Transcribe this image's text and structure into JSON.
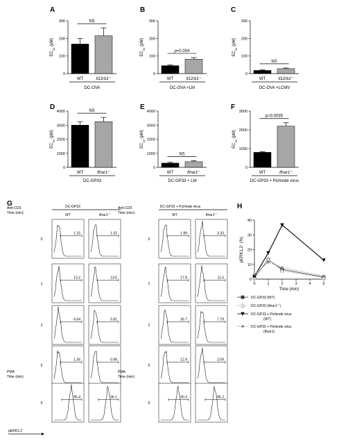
{
  "bar_panels": [
    {
      "letter": "A",
      "ymax": 300,
      "ticks": [
        "0",
        "100",
        "200",
        "300"
      ],
      "ylabel": "EC50 (pM)",
      "categories": [
        "WT",
        "Il12rb1-/-"
      ],
      "values": [
        168,
        215
      ],
      "errors": [
        32,
        45
      ],
      "annotation": "NS",
      "annotation_type": "ns",
      "condition": "DC-OVA"
    },
    {
      "letter": "B",
      "ymax": 300,
      "ticks": [
        "0",
        "100",
        "200",
        "300"
      ],
      "ylabel": "EC50 (pM)",
      "categories": [
        "WT",
        "Il12rb1-/-"
      ],
      "values": [
        45,
        82
      ],
      "errors": [
        4,
        9
      ],
      "annotation": "p=0.004",
      "annotation_type": "p",
      "condition": "DC-OVA +LM"
    },
    {
      "letter": "C",
      "ymax": 300,
      "ticks": [
        "0",
        "100",
        "200",
        "300"
      ],
      "ylabel": "EC50 (pM)",
      "categories": [
        "WT",
        "Il12rb1-/-"
      ],
      "values": [
        18,
        28
      ],
      "errors": [
        3,
        4
      ],
      "annotation": "NS",
      "annotation_type": "ns",
      "condition": "DC-OVA +LCMV"
    },
    {
      "letter": "D",
      "ymax": 4000,
      "ticks": [
        "0",
        "1000",
        "2000",
        "3000",
        "4000"
      ],
      "ylabel": "EC50 (pM)",
      "categories": [
        "WT",
        "Ifnar1-/-"
      ],
      "values": [
        3000,
        3250
      ],
      "errors": [
        250,
        300
      ],
      "annotation": "NS",
      "annotation_type": "ns",
      "condition": "DC-GP33"
    },
    {
      "letter": "E",
      "ymax": 4000,
      "ticks": [
        "0",
        "1000",
        "2000",
        "3000",
        "4000"
      ],
      "ylabel": "EC50 (pM)",
      "categories": [
        "WT",
        "Ifnar1-/-"
      ],
      "values": [
        300,
        400
      ],
      "errors": [
        60,
        70
      ],
      "annotation": "NS",
      "annotation_type": "ns",
      "condition": "DC-GP33 + LM"
    },
    {
      "letter": "F",
      "ymax": 3000,
      "ticks": [
        "0",
        "1000",
        "2000",
        "3000"
      ],
      "ylabel": "EC50 (pM)",
      "categories": [
        "WT",
        "Ifnar1-/-"
      ],
      "values": [
        800,
        2200
      ],
      "errors": [
        40,
        180
      ],
      "annotation": "p=0.0035",
      "annotation_type": "p",
      "condition": "DC-GP33 + Pichinde virus"
    }
  ],
  "panel_g": {
    "letter": "G",
    "anti_cd3": "Anti-CD3",
    "time_label": "Time (min):",
    "pma": "PMA",
    "xlabel": "pERK1,2",
    "times": [
      "0",
      "1",
      "2",
      "5"
    ],
    "pma_time": "5",
    "groups": [
      {
        "title": "DC-GP33",
        "columns": [
          "WT",
          "Ifnar1-/-"
        ],
        "values": [
          [
            "1.15",
            "1.02"
          ],
          [
            "13.2",
            "13.6"
          ],
          [
            "6.64",
            "5.81"
          ],
          [
            "1.36",
            "0.98"
          ]
        ],
        "pma_values": [
          "95.4",
          "96.1"
        ]
      },
      {
        "title": "DC-GP33 + Pichinde virus",
        "columns": [
          "WT",
          "Ifnar1-/-"
        ],
        "values": [
          [
            "1.89",
            "3.33"
          ],
          [
            "17.8",
            "11.5"
          ],
          [
            "36.7",
            "7.79"
          ],
          [
            "12.9",
            "2.09"
          ]
        ],
        "pma_values": [
          "90.3",
          "95.2"
        ]
      }
    ]
  },
  "panel_h": {
    "letter": "H",
    "ylabel": "pERK1,2+ (%)",
    "xlabel": "Time (min)",
    "yticks": [
      "0",
      "10",
      "20",
      "30",
      "40"
    ],
    "xticks": [
      "0",
      "1",
      "2",
      "3",
      "4",
      "5"
    ],
    "series": [
      {
        "name": "DC-GP33 (WT)",
        "x": [
          0,
          1,
          2,
          5
        ],
        "y": [
          1.2,
          13.2,
          6.6,
          1.4
        ],
        "color": "#333333",
        "marker": "square"
      },
      {
        "name": "DC-GP33 (Ifnar1-/-)",
        "x": [
          0,
          1,
          2,
          5
        ],
        "y": [
          1.0,
          13.6,
          5.8,
          1.0
        ],
        "color": "#999999",
        "marker": "triangle-up-open"
      },
      {
        "name": "DC-GP33 + Pichinde virus (WT)",
        "x": [
          0,
          1,
          2,
          5
        ],
        "y": [
          1.9,
          17.8,
          36.7,
          12.9
        ],
        "color": "#000000",
        "marker": "triangle-down"
      },
      {
        "name": "DC-GP33 + Pichinde virus (Ifnar1-/-)",
        "x": [
          0,
          1,
          2,
          5
        ],
        "y": [
          3.3,
          11.5,
          7.8,
          2.1
        ],
        "color": "#888888",
        "marker": "diamond"
      }
    ]
  }
}
